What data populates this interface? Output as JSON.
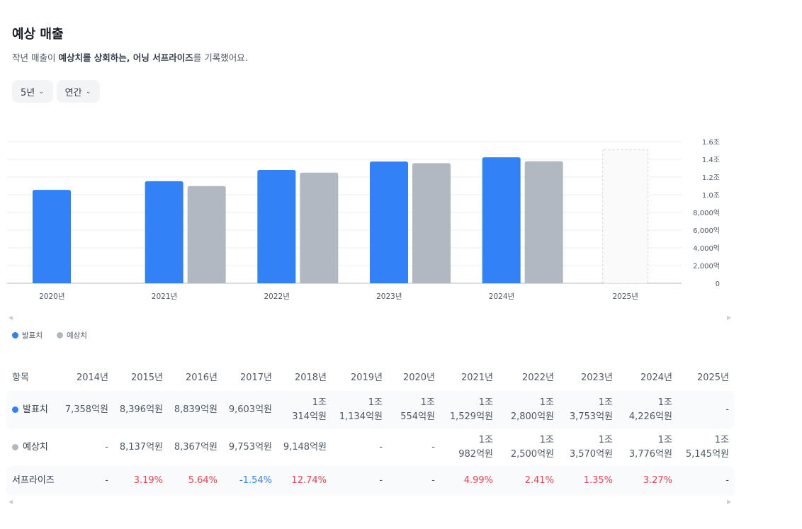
{
  "header": {
    "title": "예상 매출",
    "subtitle_pre": "작년 매출이 ",
    "subtitle_bold": "예상치를 상회하는, 어닝 서프라이즈",
    "subtitle_post": "를 기록했어요."
  },
  "filters": [
    {
      "label": "5년"
    },
    {
      "label": "연간"
    }
  ],
  "colors": {
    "actual": "#3182f6",
    "estimate": "#b0b8c1",
    "positive": "#f04452",
    "negative": "#3182f6"
  },
  "legend": {
    "actual": "발표치",
    "estimate": "예상치"
  },
  "chart_data": {
    "type": "bar",
    "categories": [
      "2020년",
      "2021년",
      "2022년",
      "2023년",
      "2024년",
      "2025년"
    ],
    "series": [
      {
        "name": "발표치",
        "values": [
          10554,
          11529,
          12800,
          13753,
          14226,
          null
        ]
      },
      {
        "name": "예상치",
        "values": [
          null,
          10982,
          12500,
          13570,
          13776,
          null
        ]
      }
    ],
    "forecast_placeholder": "2025년",
    "y_ticks": [
      "0",
      "2,000억",
      "4,000억",
      "6,000억",
      "8,000억",
      "1.0조",
      "1.2조",
      "1.4조",
      "1.6조"
    ],
    "y_tick_values": [
      0,
      2000,
      4000,
      6000,
      8000,
      10000,
      12000,
      14000,
      16000
    ],
    "ylim": [
      0,
      16000
    ],
    "y_axis_side": "right",
    "grid": true,
    "legend_position": "bottom-left"
  },
  "table": {
    "header_label": "항목",
    "years": [
      "2014년",
      "2015년",
      "2016년",
      "2017년",
      "2018년",
      "2019년",
      "2020년",
      "2021년",
      "2022년",
      "2023년",
      "2024년",
      "2025년"
    ],
    "rows": [
      {
        "label": "발표치",
        "cells": [
          [
            "7,358억원"
          ],
          [
            "8,396억원"
          ],
          [
            "8,839억원"
          ],
          [
            "9,603억원"
          ],
          [
            "1조",
            "314억원"
          ],
          [
            "1조",
            "1,134억원"
          ],
          [
            "1조",
            "554억원"
          ],
          [
            "1조",
            "1,529억원"
          ],
          [
            "1조",
            "2,800억원"
          ],
          [
            "1조",
            "3,753억원"
          ],
          [
            "1조",
            "4,226억원"
          ],
          [
            "-"
          ]
        ]
      },
      {
        "label": "예상치",
        "cells": [
          [
            "-"
          ],
          [
            "8,137억원"
          ],
          [
            "8,367억원"
          ],
          [
            "9,753억원"
          ],
          [
            "9,148억원"
          ],
          [
            "-"
          ],
          [
            "-"
          ],
          [
            "1조",
            "982억원"
          ],
          [
            "1조",
            "2,500억원"
          ],
          [
            "1조",
            "3,570억원"
          ],
          [
            "1조",
            "3,776억원"
          ],
          [
            "1조",
            "5,145억원"
          ]
        ]
      },
      {
        "label": "서프라이즈",
        "cells": [
          [
            "-"
          ],
          [
            "3.19%"
          ],
          [
            "5.64%"
          ],
          [
            "-1.54%"
          ],
          [
            "12.74%"
          ],
          [
            "-"
          ],
          [
            "-"
          ],
          [
            "4.99%"
          ],
          [
            "2.41%"
          ],
          [
            "1.35%"
          ],
          [
            "3.27%"
          ],
          [
            "-"
          ]
        ]
      }
    ]
  }
}
